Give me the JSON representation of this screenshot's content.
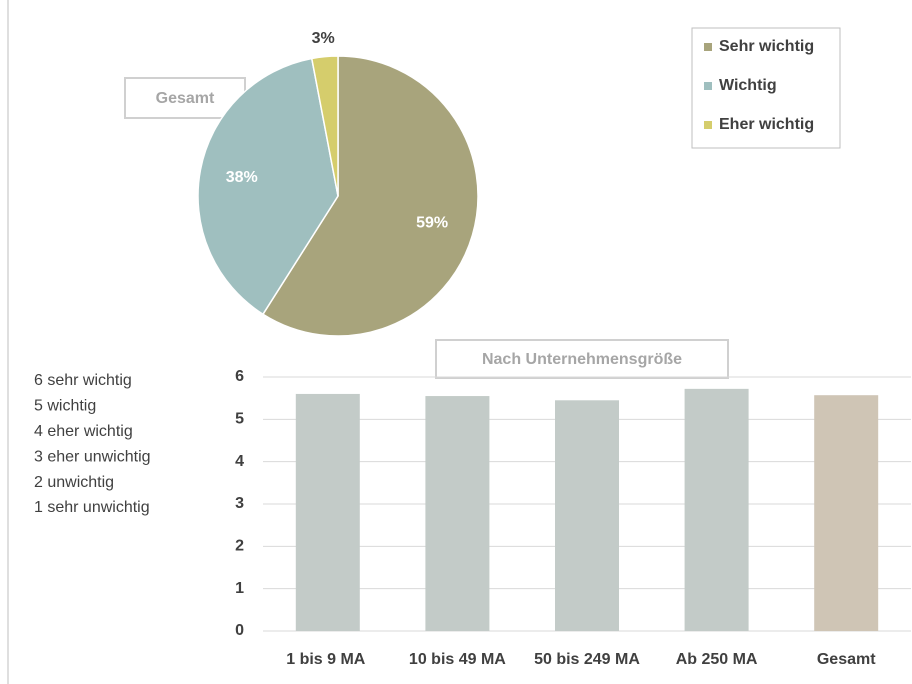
{
  "chart_data": [
    {
      "type": "pie",
      "title": "Gesamt",
      "categories": [
        "Sehr wichtig",
        "Wichtig",
        "Eher wichtig"
      ],
      "values": [
        59,
        38,
        3
      ],
      "value_labels": [
        "59%",
        "38%",
        "3%"
      ],
      "colors": [
        "#a8a47c",
        "#9fbfbf",
        "#d5cd6c"
      ],
      "legend": "top-right"
    },
    {
      "type": "bar",
      "title": "Nach Unternehmensgröße",
      "categories": [
        "1 bis 9 MA",
        "10 bis 49 MA",
        "50 bis 249 MA",
        "Ab 250 MA",
        "Gesamt"
      ],
      "values": [
        5.6,
        5.55,
        5.45,
        5.72,
        5.57
      ],
      "colors": [
        "#c3cbc8",
        "#c3cbc8",
        "#c3cbc8",
        "#c3cbc8",
        "#cfc5b5"
      ],
      "ylim": [
        0,
        6
      ],
      "yticks": [
        0,
        1,
        2,
        3,
        4,
        5,
        6
      ],
      "grid": true
    }
  ],
  "scale_legend": [
    "6 sehr wichtig",
    "5 wichtig",
    "4 eher wichtig",
    "3 eher unwichtig",
    "2 unwichtig",
    "1 sehr unwichtig"
  ]
}
